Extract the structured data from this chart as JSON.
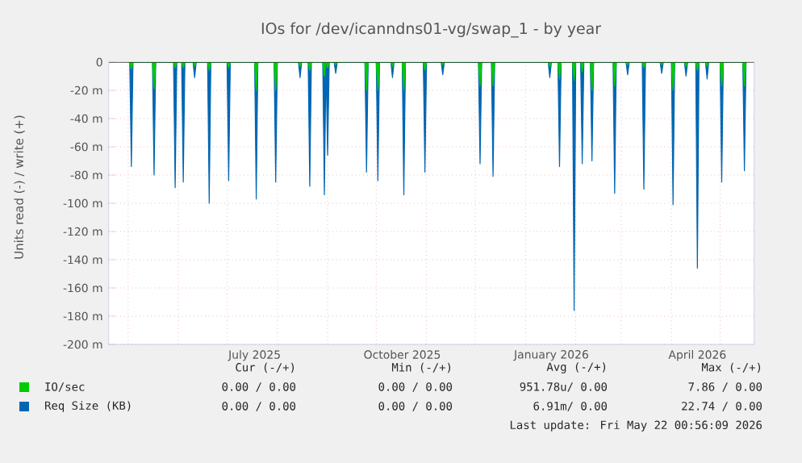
{
  "chart_data": {
    "type": "area",
    "title": "IOs for /dev/icanndns01-vg/swap_1 - by year",
    "ylabel": "Units read (-) / write (+)",
    "x": [
      "2025-05-02",
      "2025-05-03",
      "2025-05-04",
      "2025-05-16",
      "2025-05-17",
      "2025-05-18",
      "2025-05-29",
      "2025-05-30",
      "2025-05-31",
      "2025-06-03",
      "2025-06-04",
      "2025-06-05",
      "2025-06-10",
      "2025-06-11",
      "2025-06-12",
      "2025-06-19",
      "2025-06-20",
      "2025-06-21",
      "2025-07-01",
      "2025-07-02",
      "2025-07-03",
      "2025-07-18",
      "2025-07-19",
      "2025-07-20",
      "2025-07-30",
      "2025-07-31",
      "2025-08-01",
      "2025-08-14",
      "2025-08-15",
      "2025-08-16",
      "2025-08-20",
      "2025-08-21",
      "2025-08-22",
      "2025-08-29",
      "2025-08-30",
      "2025-08-31",
      "2025-09-01",
      "2025-09-02",
      "2025-09-05",
      "2025-09-06",
      "2025-09-07",
      "2025-09-24",
      "2025-09-25",
      "2025-09-26",
      "2025-10-01",
      "2025-10-02",
      "2025-10-03",
      "2025-10-10",
      "2025-10-11",
      "2025-10-12",
      "2025-10-17",
      "2025-10-18",
      "2025-10-19",
      "2025-10-30",
      "2025-10-31",
      "2025-11-01",
      "2025-11-10",
      "2025-11-11",
      "2025-11-12",
      "2025-12-03",
      "2025-12-04",
      "2025-12-05",
      "2025-12-11",
      "2025-12-12",
      "2025-12-13",
      "2026-01-15",
      "2026-01-16",
      "2026-01-17",
      "2026-01-21",
      "2026-01-22",
      "2026-01-23",
      "2026-01-30",
      "2026-01-31",
      "2026-02-01",
      "2026-02-04",
      "2026-02-05",
      "2026-02-06",
      "2026-02-10",
      "2026-02-11",
      "2026-02-12",
      "2026-02-24",
      "2026-02-25",
      "2026-02-26",
      "2026-03-04",
      "2026-03-05",
      "2026-03-06",
      "2026-03-14",
      "2026-03-15",
      "2026-03-16",
      "2026-03-25",
      "2026-03-26",
      "2026-03-27",
      "2026-04-01",
      "2026-04-02",
      "2026-04-03",
      "2026-04-09",
      "2026-04-10",
      "2026-04-11",
      "2026-04-16",
      "2026-04-17",
      "2026-04-18",
      "2026-04-22",
      "2026-04-23",
      "2026-04-24",
      "2026-05-01",
      "2026-05-02",
      "2026-05-03",
      "2026-05-15",
      "2026-05-16",
      "2026-05-17"
    ],
    "series": [
      {
        "name": "IO/sec",
        "color": "#00cc00",
        "values": [
          0,
          -5,
          0,
          0,
          -19,
          0,
          0,
          -4,
          0,
          0,
          -4,
          0,
          0,
          -3,
          0,
          0,
          -6,
          0,
          0,
          -4,
          0,
          0,
          -20,
          0,
          0,
          -20,
          0,
          0,
          -3,
          0,
          0,
          -6,
          0,
          0,
          -10,
          0,
          -4,
          0,
          0,
          -2,
          0,
          0,
          -20,
          0,
          0,
          -20,
          0,
          0,
          -3,
          0,
          0,
          -20,
          0,
          0,
          -6,
          0,
          0,
          -2,
          0,
          0,
          -17,
          0,
          0,
          -17,
          0,
          0,
          -3,
          0,
          0,
          -12,
          0,
          0,
          -13,
          0,
          0,
          -7,
          0,
          0,
          -20,
          0,
          0,
          -17,
          0,
          0,
          -2,
          0,
          0,
          -4,
          0,
          0,
          -2,
          0,
          0,
          -20,
          0,
          0,
          -3,
          0,
          0,
          -6,
          0,
          0,
          -3,
          0,
          0,
          -17,
          0,
          0,
          -17,
          0
        ]
      },
      {
        "name": "Req Size (KB)",
        "color": "#0066b3",
        "values": [
          0,
          -74,
          0,
          0,
          -80,
          0,
          0,
          -89,
          0,
          0,
          -85,
          0,
          0,
          -11,
          0,
          0,
          -100,
          0,
          0,
          -84,
          0,
          0,
          -97,
          0,
          0,
          -85,
          0,
          0,
          -11,
          0,
          0,
          -88,
          0,
          0,
          -94,
          0,
          -66,
          0,
          0,
          -8,
          0,
          0,
          -78,
          0,
          0,
          -84,
          0,
          0,
          -11,
          0,
          0,
          -94,
          0,
          0,
          -78,
          0,
          0,
          -9,
          0,
          0,
          -72,
          0,
          0,
          -81,
          0,
          0,
          -11,
          0,
          0,
          -74,
          0,
          0,
          -176,
          0,
          0,
          -72,
          0,
          0,
          -70,
          0,
          0,
          -93,
          0,
          0,
          -9,
          0,
          0,
          -90,
          0,
          0,
          -8,
          0,
          0,
          -101,
          0,
          0,
          -10,
          0,
          0,
          -146,
          0,
          0,
          -12,
          0,
          0,
          -85,
          0,
          0,
          -77,
          0
        ]
      }
    ],
    "xlim": [
      "2025-04-19",
      "2026-05-22"
    ],
    "xticks": [
      {
        "value": "2025-05-01",
        "label": null
      },
      {
        "value": "2025-06-01",
        "label": null
      },
      {
        "value": "2025-07-01",
        "label": null
      },
      {
        "value": "2025-08-01",
        "label": null
      },
      {
        "value": "2025-09-01",
        "label": null
      },
      {
        "value": "2025-10-01",
        "label": null
      },
      {
        "value": "2025-11-01",
        "label": null
      },
      {
        "value": "2025-12-01",
        "label": null
      },
      {
        "value": "2026-01-01",
        "label": null
      },
      {
        "value": "2026-02-01",
        "label": null
      },
      {
        "value": "2026-03-01",
        "label": null
      },
      {
        "value": "2026-04-01",
        "label": null
      },
      {
        "value": "2026-05-01",
        "label": null
      },
      {
        "value": "2025-07-18",
        "label": "July 2025"
      },
      {
        "value": "2025-10-17",
        "label": "October 2025"
      },
      {
        "value": "2026-01-17",
        "label": "January 2026"
      },
      {
        "value": "2026-04-17",
        "label": "April 2026"
      }
    ],
    "ylim": [
      -200,
      0
    ],
    "yticks": [
      0,
      {
        "value": -20,
        "label": "-20 m"
      },
      {
        "value": -40,
        "label": "-40 m"
      },
      {
        "value": -60,
        "label": "-60 m"
      },
      {
        "value": -80,
        "label": "-80 m"
      },
      {
        "value": -100,
        "label": "-100 m"
      },
      {
        "value": -120,
        "label": "-120 m"
      },
      {
        "value": -140,
        "label": "-140 m"
      },
      {
        "value": -160,
        "label": "-160 m"
      },
      {
        "value": -180,
        "label": "-180 m"
      },
      {
        "value": -200,
        "label": "-200 m"
      }
    ],
    "grid": true,
    "legend": "bottom",
    "annotations": [
      "Cur (-/+)",
      "Min (-/+)",
      "Avg (-/+)",
      "Max (-/+)",
      "0.00 / 0.00",
      "0.00 / 0.00",
      "951.78u/ 0.00",
      "7.86 / 0.00",
      "0.00 / 0.00",
      "0.00 / 0.00",
      "6.91m/ 0.00",
      "22.74 / 0.00",
      "Last update: Fri May 22 00:56:09 2026"
    ]
  }
}
